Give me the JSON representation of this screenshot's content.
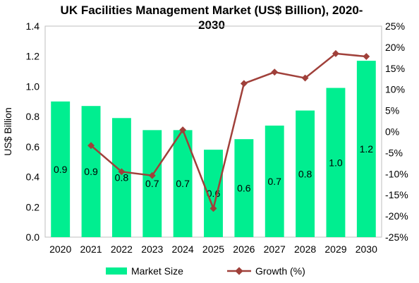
{
  "chart_data": {
    "type": "bar",
    "title": "UK Facilities Management Market (US$ Billion), 2020-2030",
    "title_lines": [
      "UK Facilities Management Market (US$ Billion), 2020-",
      "2030"
    ],
    "ylabel": "US$ Billion",
    "categories": [
      "2020",
      "2021",
      "2022",
      "2023",
      "2024",
      "2025",
      "2026",
      "2027",
      "2028",
      "2029",
      "2030"
    ],
    "ylim": [
      0,
      1.4
    ],
    "y_ticks": [
      "0.0",
      "0.2",
      "0.4",
      "0.6",
      "0.8",
      "1.0",
      "1.2",
      "1.4"
    ],
    "y2lim": [
      -25,
      25
    ],
    "y2_ticks": [
      "-25%",
      "-20%",
      "-15%",
      "-10%",
      "-5%",
      "0%",
      "5%",
      "10%",
      "15%",
      "20%",
      "25%"
    ],
    "series": [
      {
        "name": "Market Size",
        "type": "bar",
        "color": "#00EE90",
        "values": [
          0.9,
          0.87,
          0.79,
          0.71,
          0.71,
          0.58,
          0.65,
          0.74,
          0.84,
          0.99,
          1.17
        ],
        "labels": [
          "0.9",
          "0.9",
          "0.8",
          "0.7",
          "0.7",
          "0.6",
          "0.6",
          "0.7",
          "0.8",
          "1.0",
          "1.2"
        ]
      },
      {
        "name": "Growth (%)",
        "type": "line",
        "axis": "secondary",
        "color": "#A0403A",
        "values": [
          null,
          -3.3,
          -9.5,
          -10.4,
          0.4,
          -18.2,
          11.4,
          14.1,
          12.7,
          18.5,
          17.8
        ]
      }
    ],
    "legend_position": "bottom",
    "grid": false
  }
}
